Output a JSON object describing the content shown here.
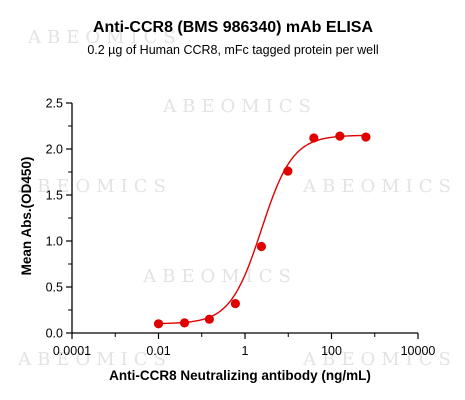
{
  "chart_data": {
    "type": "scatter",
    "title": "Anti-CCR8 (BMS 986340) mAb ELISA",
    "subtitle": "0.2 µg of Human CCR8, mFc tagged protein per well",
    "xlabel": "Anti-CCR8 Neutralizing antibody (ng/mL)",
    "ylabel": "Mean Abs.(OD450)",
    "xscale": "log",
    "xlim": [
      0.0001,
      10000
    ],
    "ylim": [
      0,
      2.5
    ],
    "x_ticks": [
      "0.0001",
      "0.01",
      "1",
      "100",
      "10000"
    ],
    "y_ticks": [
      "0.0",
      "0.5",
      "1.0",
      "1.5",
      "2.0",
      "2.5"
    ],
    "grid": false,
    "legend": "none",
    "points": {
      "x": [
        0.01,
        0.04,
        0.15,
        0.6,
        2.4,
        9.8,
        39,
        156,
        625
      ],
      "y": [
        0.1,
        0.11,
        0.15,
        0.32,
        0.94,
        1.76,
        2.12,
        2.14,
        2.13
      ]
    },
    "fit_curve": {
      "model": "4PL",
      "bottom": 0.1,
      "top": 2.15,
      "ec50": 2.4,
      "hill": 1.2
    },
    "colors": {
      "points": "#e00000",
      "curve": "#e00000",
      "axes": "#000000"
    },
    "watermark": "ABEOMICS"
  }
}
